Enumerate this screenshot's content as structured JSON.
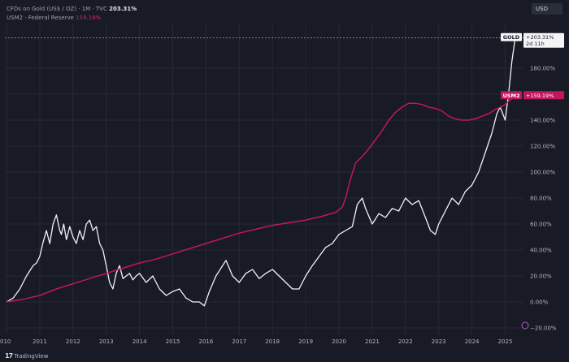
{
  "legend": {
    "gold_label": "CFDs on Gold (US$ / OZ) · 1M · TVC",
    "gold_value": "203.31%",
    "m2_label": "USM2 · Federal Reserve",
    "m2_value": "159.19%"
  },
  "currency_button": "USD",
  "attribution": "TradingView",
  "colors": {
    "background": "#181a25",
    "gold_line": "#f2f2f6",
    "m2_line": "#c2185b",
    "grid": "#262938",
    "axis_text": "#b3b7c4"
  },
  "chart_data": {
    "type": "line",
    "title": "",
    "xlabel": "",
    "ylabel": "",
    "x_tick_labels": [
      "010",
      "2011",
      "2012",
      "2013",
      "2014",
      "2015",
      "2016",
      "2017",
      "2018",
      "2019",
      "2020",
      "2021",
      "2022",
      "2023",
      "2024",
      "2025"
    ],
    "xlim": [
      2009.95,
      2025.55
    ],
    "y_tick_values": [
      -20,
      0,
      20,
      40,
      60,
      80,
      100,
      120,
      140,
      160,
      180
    ],
    "y_tick_labels": [
      "−20.00%",
      "0.00%",
      "20.00%",
      "40.00%",
      "60.00%",
      "80.00%",
      "100.00%",
      "120.00%",
      "140.00%",
      "160.00%",
      "180.00%"
    ],
    "ylim": [
      -25,
      215
    ],
    "grid": true,
    "gold_badge": {
      "tag": "GOLD",
      "value": "+203.31%",
      "sub": "2d 11h",
      "y": 203.31
    },
    "m2_badge": {
      "tag": "USM2",
      "value": "+159.19%",
      "y": 159.19
    },
    "series": [
      {
        "key": "gold",
        "x": [
          2010.0,
          2010.2,
          2010.4,
          2010.6,
          2010.8,
          2010.9,
          2011.0,
          2011.1,
          2011.2,
          2011.3,
          2011.4,
          2011.5,
          2011.6,
          2011.65,
          2011.72,
          2011.8,
          2011.9,
          2012.0,
          2012.1,
          2012.2,
          2012.3,
          2012.4,
          2012.5,
          2012.6,
          2012.7,
          2012.8,
          2012.9,
          2013.0,
          2013.1,
          2013.2,
          2013.3,
          2013.4,
          2013.5,
          2013.6,
          2013.7,
          2013.8,
          2013.9,
          2014.0,
          2014.2,
          2014.4,
          2014.6,
          2014.8,
          2015.0,
          2015.2,
          2015.4,
          2015.6,
          2015.8,
          2015.95,
          2016.1,
          2016.3,
          2016.5,
          2016.6,
          2016.8,
          2017.0,
          2017.2,
          2017.4,
          2017.6,
          2017.8,
          2018.0,
          2018.2,
          2018.4,
          2018.6,
          2018.8,
          2019.0,
          2019.2,
          2019.4,
          2019.6,
          2019.8,
          2020.0,
          2020.2,
          2020.4,
          2020.55,
          2020.7,
          2020.8,
          2021.0,
          2021.2,
          2021.4,
          2021.6,
          2021.8,
          2022.0,
          2022.2,
          2022.4,
          2022.6,
          2022.75,
          2022.9,
          2023.0,
          2023.2,
          2023.4,
          2023.6,
          2023.8,
          2024.0,
          2024.2,
          2024.4,
          2024.6,
          2024.75,
          2024.85,
          2025.0,
          2025.1,
          2025.2,
          2025.3
        ],
        "values": [
          0,
          3,
          10,
          20,
          28,
          30,
          35,
          46,
          55,
          45,
          60,
          67,
          55,
          52,
          60,
          48,
          58,
          50,
          45,
          55,
          48,
          60,
          63,
          55,
          58,
          45,
          40,
          28,
          15,
          10,
          22,
          28,
          18,
          20,
          22,
          17,
          20,
          22,
          15,
          20,
          10,
          5,
          8,
          10,
          3,
          0,
          0,
          -3,
          8,
          20,
          28,
          32,
          20,
          15,
          22,
          25,
          18,
          22,
          25,
          20,
          15,
          10,
          10,
          20,
          28,
          35,
          42,
          45,
          52,
          55,
          58,
          75,
          80,
          72,
          60,
          68,
          65,
          72,
          70,
          80,
          75,
          78,
          65,
          55,
          52,
          60,
          70,
          80,
          75,
          85,
          90,
          100,
          115,
          130,
          145,
          150,
          140,
          160,
          185,
          203.31
        ]
      },
      {
        "key": "m2",
        "x": [
          2010.0,
          2010.5,
          2011.0,
          2011.5,
          2012.0,
          2012.5,
          2013.0,
          2013.5,
          2014.0,
          2014.5,
          2015.0,
          2015.5,
          2016.0,
          2016.5,
          2017.0,
          2017.5,
          2018.0,
          2018.5,
          2019.0,
          2019.5,
          2019.9,
          2020.1,
          2020.2,
          2020.35,
          2020.5,
          2020.7,
          2020.9,
          2021.1,
          2021.3,
          2021.5,
          2021.7,
          2021.9,
          2022.1,
          2022.3,
          2022.5,
          2022.7,
          2022.9,
          2023.1,
          2023.3,
          2023.5,
          2023.7,
          2023.9,
          2024.1,
          2024.3,
          2024.5,
          2024.7,
          2025.0,
          2025.3
        ],
        "values": [
          0,
          2,
          5,
          10,
          14,
          18,
          22,
          26,
          30,
          33,
          37,
          41,
          45,
          49,
          53,
          56,
          59,
          61,
          63,
          66,
          69,
          73,
          80,
          95,
          107,
          112,
          118,
          125,
          132,
          140,
          146,
          150,
          153,
          153,
          152,
          150,
          149,
          147,
          143,
          141,
          140,
          140,
          141,
          143,
          145,
          148,
          152,
          159.19
        ]
      }
    ]
  }
}
